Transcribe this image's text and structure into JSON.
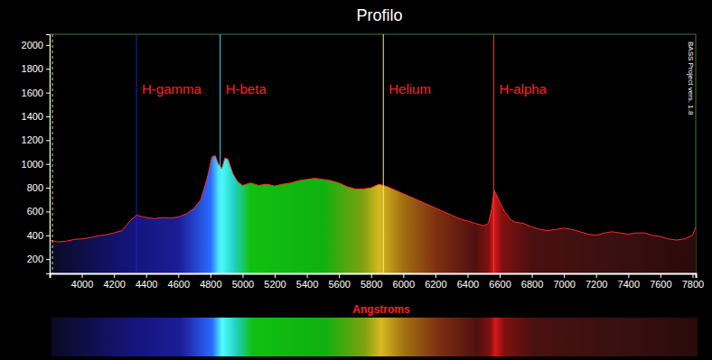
{
  "chart_data": {
    "type": "line",
    "title": "Profilo",
    "x_label": "Angstroms",
    "color": "#ff2a2a",
    "grid": false,
    "x": [
      3800,
      3850,
      3900,
      3950,
      4000,
      4050,
      4100,
      4150,
      4200,
      4250,
      4300,
      4340,
      4380,
      4450,
      4500,
      4550,
      4600,
      4650,
      4700,
      4740,
      4780,
      4810,
      4830,
      4850,
      4870,
      4890,
      4910,
      4940,
      4970,
      5000,
      5050,
      5100,
      5150,
      5200,
      5250,
      5300,
      5350,
      5400,
      5450,
      5500,
      5550,
      5600,
      5650,
      5700,
      5750,
      5800,
      5850,
      5900,
      5950,
      6000,
      6050,
      6100,
      6150,
      6200,
      6250,
      6300,
      6350,
      6400,
      6450,
      6500,
      6530,
      6550,
      6565,
      6580,
      6600,
      6630,
      6670,
      6700,
      6750,
      6800,
      6850,
      6900,
      6950,
      7000,
      7050,
      7100,
      7150,
      7200,
      7250,
      7300,
      7350,
      7400,
      7450,
      7500,
      7550,
      7600,
      7650,
      7700,
      7750,
      7800,
      7820
    ],
    "values": [
      360,
      345,
      350,
      365,
      370,
      380,
      395,
      405,
      420,
      440,
      520,
      570,
      555,
      540,
      550,
      545,
      555,
      580,
      630,
      700,
      880,
      1060,
      1070,
      1000,
      960,
      1050,
      1040,
      920,
      850,
      820,
      840,
      820,
      830,
      815,
      830,
      840,
      860,
      870,
      880,
      870,
      860,
      840,
      810,
      790,
      790,
      800,
      830,
      810,
      780,
      750,
      720,
      690,
      660,
      630,
      600,
      570,
      540,
      520,
      500,
      480,
      500,
      620,
      780,
      740,
      680,
      600,
      530,
      510,
      500,
      470,
      450,
      440,
      450,
      460,
      450,
      430,
      410,
      400,
      420,
      430,
      420,
      410,
      420,
      420,
      400,
      390,
      370,
      360,
      370,
      400,
      470
    ],
    "xlim": [
      3800,
      7820
    ],
    "ylim": [
      80,
      2090
    ],
    "xticks": [
      4000,
      4200,
      4400,
      4600,
      4800,
      5000,
      5200,
      5400,
      5600,
      5800,
      6000,
      6200,
      6400,
      6600,
      6800,
      7000,
      7200,
      7400,
      7600,
      7800
    ],
    "yticks": [
      200,
      400,
      600,
      800,
      1000,
      1200,
      1400,
      1600,
      1800,
      2000
    ],
    "annotations": [
      {
        "text": "H-gamma",
        "x": 4340,
        "color": "#2020c8"
      },
      {
        "text": "H-beta",
        "x": 4861,
        "color": "#40e0ff"
      },
      {
        "text": "Helium",
        "x": 5876,
        "color": "#f0f080"
      },
      {
        "text": "H-alpha",
        "x": 6563,
        "color": "#ff3030"
      },
      {
        "text": "BASS Project vers. 1.8"
      }
    ]
  }
}
